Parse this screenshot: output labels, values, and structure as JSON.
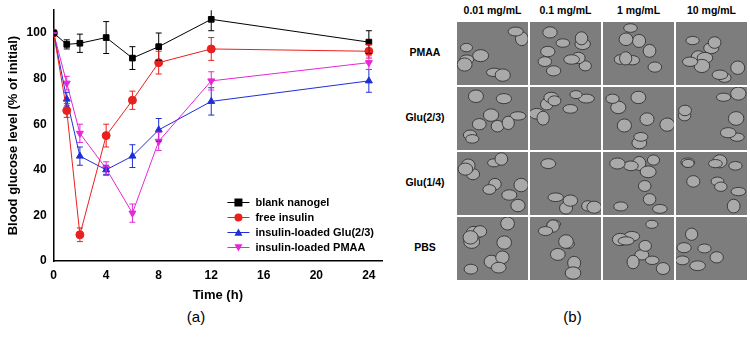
{
  "chart_data": {
    "type": "line",
    "x_label": "Time (h)",
    "y_label": "Blood glucose level (% of initial)",
    "x": [
      0,
      1,
      2,
      4,
      6,
      8,
      12,
      24
    ],
    "xlim": [
      0,
      25
    ],
    "xticks": [
      0,
      4,
      8,
      12,
      16,
      20,
      24
    ],
    "ylim": [
      0,
      110
    ],
    "yticks": [
      0,
      20,
      40,
      60,
      80,
      100
    ],
    "grid": false,
    "legend": "lower right",
    "series": [
      {
        "name": "blank nanogel",
        "color": "#000000",
        "marker": "square",
        "values": [
          100,
          95,
          95.5,
          98,
          89,
          94,
          106,
          96
        ],
        "errors": [
          0,
          2,
          4,
          7,
          5,
          6,
          5,
          5
        ]
      },
      {
        "name": "free insulin",
        "color": "#e8211f",
        "marker": "circle",
        "values": [
          100,
          66,
          11.5,
          55,
          70.5,
          87,
          93,
          92
        ],
        "errors": [
          0,
          3,
          3,
          5,
          4,
          5,
          5,
          3
        ]
      },
      {
        "name": "insulin-loaded Glu(2/3)",
        "color": "#1f2fd6",
        "marker": "triangle",
        "values": [
          100,
          71,
          46,
          40,
          46,
          57.5,
          70,
          79
        ],
        "errors": [
          0,
          3,
          4,
          2,
          5,
          5,
          6,
          5
        ]
      },
      {
        "name": "insulin-loaded PMAA",
        "color": "#e627d6",
        "marker": "triangle_down",
        "values": [
          100,
          78,
          56,
          40.5,
          21,
          52.5,
          79,
          87
        ],
        "errors": [
          0,
          3,
          4,
          3,
          4,
          4,
          4,
          3
        ]
      }
    ]
  },
  "panel_labels": [
    "(a)",
    "(b)"
  ],
  "micrographs": {
    "columns": [
      "0.01 mg/mL",
      "0.1 mg/mL",
      "1 mg/mL",
      "10 mg/mL"
    ],
    "rows": [
      "PMAA",
      "Glu(2/3)",
      "Glu(1/4)",
      "PBS"
    ]
  }
}
